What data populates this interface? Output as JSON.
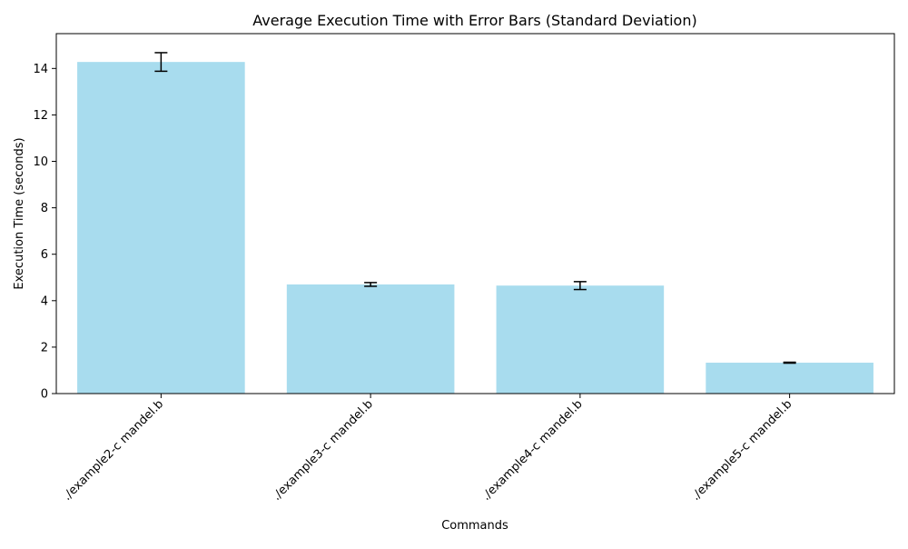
{
  "chart_data": {
    "type": "bar",
    "title": "Average Execution Time with Error Bars (Standard Deviation)",
    "xlabel": "Commands",
    "ylabel": "Execution Time (seconds)",
    "categories": [
      "./example2-c mandel.b",
      "./example3-c mandel.b",
      "./example4-c mandel.b",
      "./example5-c mandel.b"
    ],
    "values": [
      14.28,
      4.7,
      4.65,
      1.33
    ],
    "errors": [
      0.4,
      0.08,
      0.17,
      0.02
    ],
    "ylim": [
      0,
      15.5
    ],
    "yticks": [
      0,
      2,
      4,
      6,
      8,
      10,
      12,
      14
    ],
    "ytick_labels": [
      "0",
      "2",
      "4",
      "6",
      "8",
      "10",
      "12",
      "14"
    ],
    "bar_color": "#a8dcee",
    "error_color": "#000000",
    "grid": false,
    "legend": "none"
  }
}
